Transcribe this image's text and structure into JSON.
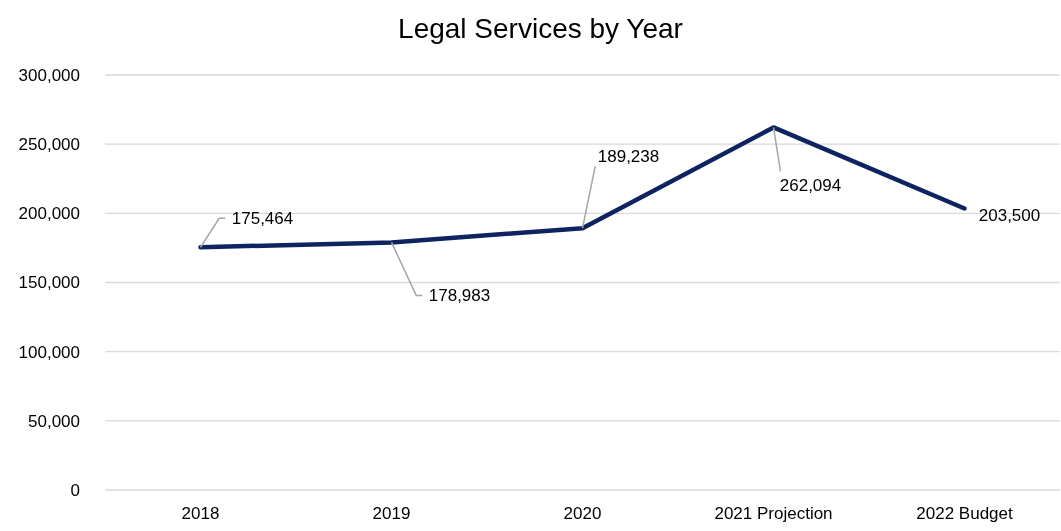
{
  "chart_data": {
    "type": "line",
    "title": "Legal Services by Year",
    "categories": [
      "2018",
      "2019",
      "2020",
      "2021 Projection",
      "2022 Budget"
    ],
    "series": [
      {
        "color": "#0e2461",
        "values": [
          175464,
          178983,
          189238,
          262094,
          203500
        ],
        "value_labels": [
          "175,464",
          "178,983",
          "189,238",
          "262,094",
          "203,500"
        ]
      }
    ],
    "ylim": [
      0,
      300000
    ],
    "yticks": [
      {
        "value": 0,
        "label": "0"
      },
      {
        "value": 50000,
        "label": "50,000"
      },
      {
        "value": 100000,
        "label": "100,000"
      },
      {
        "value": 150000,
        "label": "150,000"
      },
      {
        "value": 200000,
        "label": "200,000"
      },
      {
        "value": 250000,
        "label": "250,000"
      },
      {
        "value": 300000,
        "label": "300,000"
      }
    ],
    "grid": "y",
    "marker": "none",
    "line_style": "solid"
  }
}
